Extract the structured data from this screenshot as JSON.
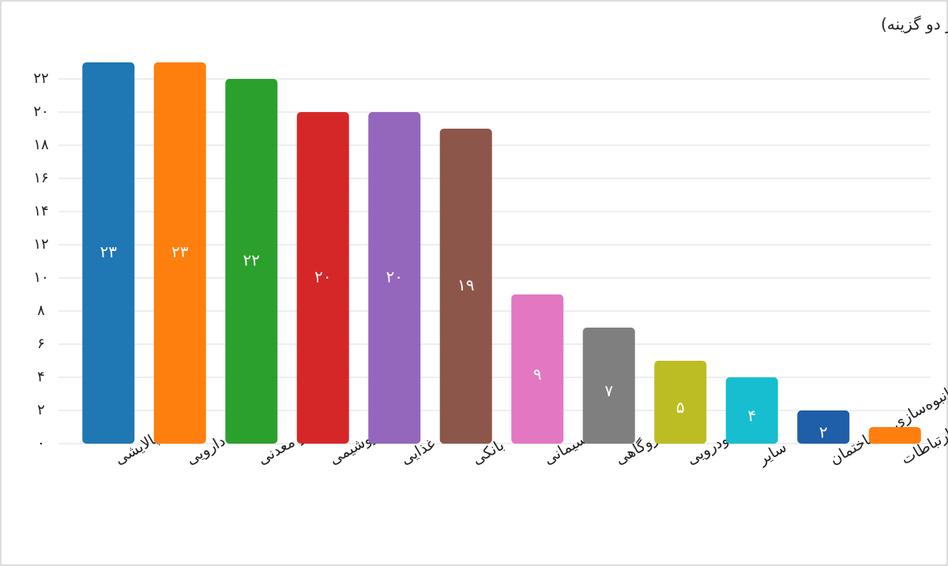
{
  "chart_data": {
    "type": "bar",
    "title": "از میان صنایع بورسی، کدام دو گروه را در شش ماه آینده مستعد عملکرد بهتر می‌دانید؟ (حداکثر دو گزینه)",
    "categories": [
      "پالایشی",
      "دارویی",
      "فلزی و معدنی",
      "پتروشیمی",
      "غذایی",
      "بانکی",
      "سیمانی",
      "برق و نیروگاهی",
      "خودرویی",
      "سایر",
      "انبوه‌سازی و ساختمان",
      "فناوری و ارتباطات"
    ],
    "values": [
      23,
      23,
      22,
      20,
      20,
      19,
      9,
      7,
      5,
      4,
      2,
      1
    ],
    "value_labels": [
      "۲۳",
      "۲۳",
      "۲۲",
      "۲۰",
      "۲۰",
      "۱۹",
      "۹",
      "۷",
      "۵",
      "۴",
      "۲",
      null
    ],
    "colors": [
      "#1f77b4",
      "#ff7f0e",
      "#2ca02c",
      "#d62728",
      "#9467bd",
      "#8c564b",
      "#e377c2",
      "#7f7f7f",
      "#bcbd22",
      "#17becf",
      "#1f5ea8",
      "#ff7f0e"
    ],
    "ylim": [
      0,
      23
    ],
    "yticks": [
      {
        "value": 0,
        "label": "۰"
      },
      {
        "value": 2,
        "label": "۲"
      },
      {
        "value": 4,
        "label": "۴"
      },
      {
        "value": 6,
        "label": "۶"
      },
      {
        "value": 8,
        "label": "۸"
      },
      {
        "value": 10,
        "label": "۱۰"
      },
      {
        "value": 12,
        "label": "۱۲"
      },
      {
        "value": 14,
        "label": "۱۴"
      },
      {
        "value": 16,
        "label": "۱۶"
      },
      {
        "value": 18,
        "label": "۱۸"
      },
      {
        "value": 20,
        "label": "۲۰"
      },
      {
        "value": 22,
        "label": "۲۲"
      }
    ],
    "grid": true
  }
}
